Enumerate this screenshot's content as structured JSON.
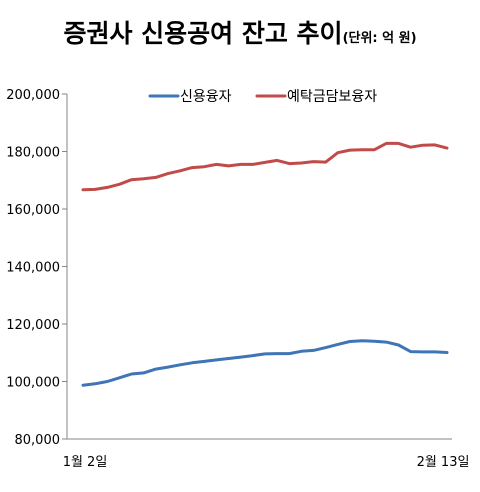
{
  "chart_data": {
    "type": "line",
    "title": "증권사 신용공여 잔고 추이",
    "subtitle": "(단위: 억 원)",
    "x_tick_labels": [
      "1월 2일",
      "2월 13일"
    ],
    "ylim": [
      80000,
      200000
    ],
    "yticks": [
      80000,
      100000,
      120000,
      140000,
      160000,
      180000,
      200000
    ],
    "ytick_labels": [
      "80,000",
      "100,000",
      "120,000",
      "140,000",
      "160,000",
      "180,000",
      "200,000"
    ],
    "grid": false,
    "legend_position": "top",
    "series": [
      {
        "name": "신용융자",
        "color": "#3f74b6",
        "values": [
          98700,
          99200,
          100000,
          101300,
          102600,
          103000,
          104300,
          105000,
          105800,
          106500,
          107000,
          107500,
          108000,
          108500,
          109000,
          109600,
          109700,
          109700,
          110500,
          110800,
          111800,
          112900,
          113900,
          114200,
          114000,
          113700,
          112700,
          110400,
          110300,
          110300,
          110100
        ]
      },
      {
        "name": "예탁금담보융자",
        "color": "#c04b48",
        "values": [
          166700,
          166800,
          167500,
          168600,
          170200,
          170500,
          171000,
          172300,
          173300,
          174400,
          174700,
          175500,
          175000,
          175500,
          175500,
          176200,
          176900,
          175800,
          176000,
          176500,
          176300,
          179600,
          180500,
          180600,
          180600,
          182800,
          182800,
          181500,
          182200,
          182300,
          181200
        ]
      }
    ]
  }
}
